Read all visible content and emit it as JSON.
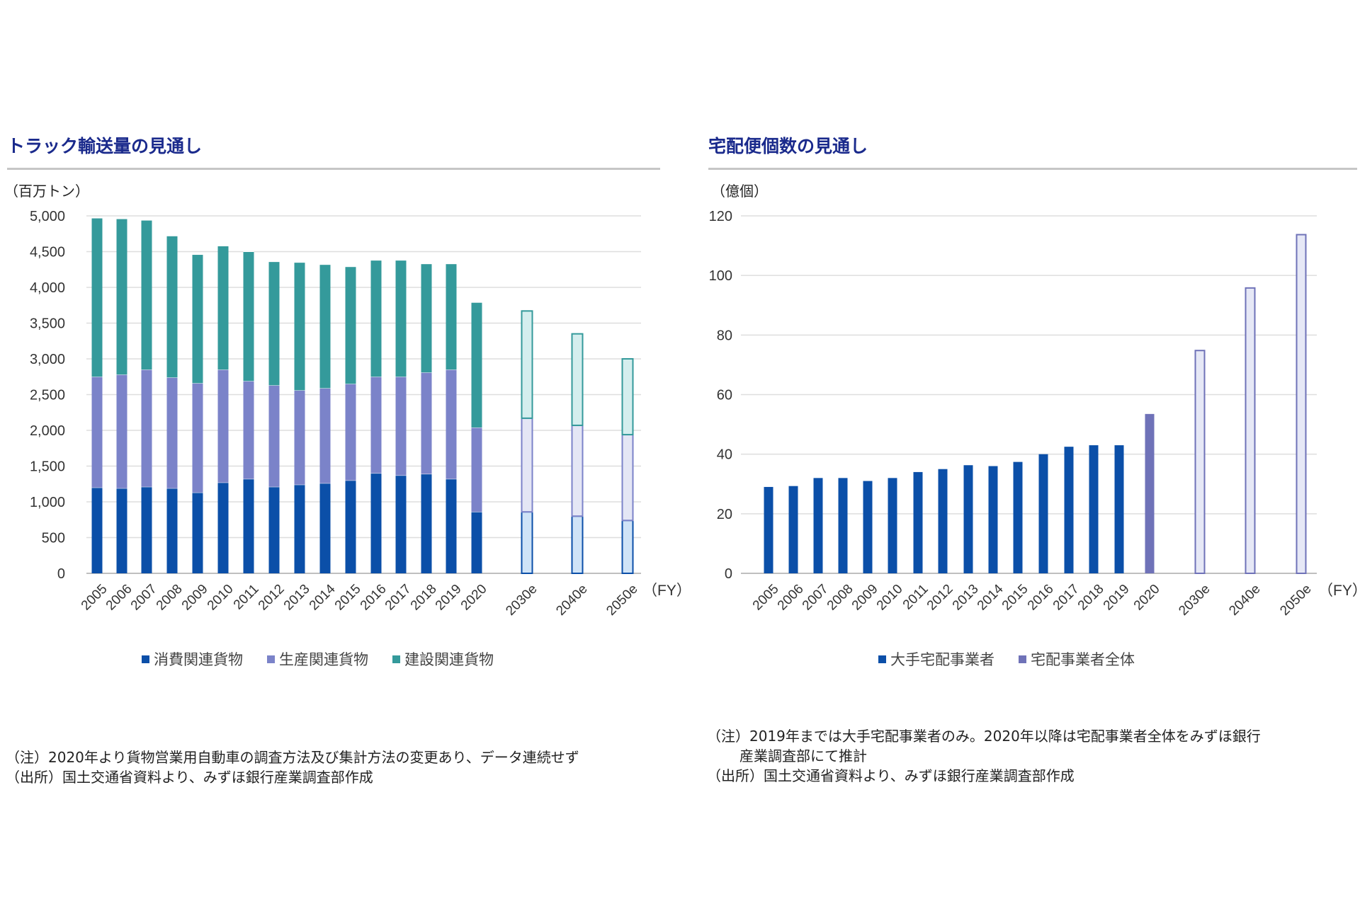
{
  "chart_data": [
    {
      "type": "bar",
      "stacked": true,
      "title": "トラック輸送量の見通し",
      "unit_label": "（百万トン）",
      "xlabel": "（FY）",
      "ylim": [
        0,
        5000
      ],
      "yticks": [
        0,
        500,
        1000,
        1500,
        2000,
        2500,
        3000,
        3500,
        4000,
        4500,
        5000
      ],
      "ytick_labels": [
        "0",
        "500",
        "1,000",
        "1,500",
        "2,000",
        "2,500",
        "3,000",
        "3,500",
        "4,000",
        "4,500",
        "5,000"
      ],
      "categories": [
        "2005",
        "2006",
        "2007",
        "2008",
        "2009",
        "2010",
        "2011",
        "2012",
        "2013",
        "2014",
        "2015",
        "2016",
        "2017",
        "2018",
        "2019",
        "2020",
        "2030e",
        "2040e",
        "2050e"
      ],
      "series": [
        {
          "name": "消費関連貨物",
          "color": "#0b4fa8",
          "values": [
            1200,
            1190,
            1210,
            1190,
            1130,
            1270,
            1320,
            1210,
            1240,
            1260,
            1300,
            1400,
            1370,
            1390,
            1320,
            860,
            860,
            800,
            740
          ]
        },
        {
          "name": "生産関連貨物",
          "color": "#7b83c9",
          "values": [
            1550,
            1590,
            1640,
            1550,
            1530,
            1580,
            1370,
            1420,
            1320,
            1330,
            1350,
            1350,
            1380,
            1420,
            1530,
            1180,
            1310,
            1270,
            1200
          ]
        },
        {
          "name": "建設関連貨物",
          "color": "#349a9b",
          "values": [
            2220,
            2180,
            2090,
            1980,
            1800,
            1730,
            1810,
            1730,
            1790,
            1730,
            1640,
            1630,
            1630,
            1520,
            1480,
            1750,
            1500,
            1280,
            1060
          ]
        }
      ],
      "projected_from_index": 16,
      "projected_fill": [
        "#cfe3f7",
        "#e4e6f5",
        "#d4eeee"
      ],
      "legend": [
        "消費関連貨物",
        "生産関連貨物",
        "建設関連貨物"
      ],
      "notes": [
        "（注）2020年より貨物営業用自動車の調査方法及び集計方法の変更あり、データ連続せず",
        "（出所）国土交通省資料より、みずほ銀行産業調査部作成"
      ]
    },
    {
      "type": "bar",
      "title": "宅配便個数の見通し",
      "unit_label": "（億個）",
      "xlabel": "（FY）",
      "ylim": [
        0,
        120
      ],
      "yticks": [
        0,
        20,
        40,
        60,
        80,
        100,
        120
      ],
      "ytick_labels": [
        "0",
        "20",
        "40",
        "60",
        "80",
        "100",
        "120"
      ],
      "categories": [
        "2005",
        "2006",
        "2007",
        "2008",
        "2009",
        "2010",
        "2011",
        "2012",
        "2013",
        "2014",
        "2015",
        "2016",
        "2017",
        "2018",
        "2019",
        "2020",
        "2030e",
        "2040e",
        "2050e"
      ],
      "series": [
        {
          "name": "大手宅配事業者",
          "color": "#0b4fa8",
          "values": [
            29,
            29.3,
            32,
            32,
            31,
            32,
            34,
            35,
            36.3,
            36,
            37.4,
            40,
            42.5,
            43,
            43,
            null,
            null,
            null,
            null
          ]
        },
        {
          "name": "宅配事業者全体",
          "color": "#6f72b8",
          "values": [
            null,
            null,
            null,
            null,
            null,
            null,
            null,
            null,
            null,
            null,
            null,
            null,
            null,
            null,
            null,
            53.5,
            74.8,
            95.8,
            113.7
          ]
        }
      ],
      "projected_from_index": 16,
      "projected_fill": "#e6e8f6",
      "legend": [
        "大手宅配事業者",
        "宅配事業者全体"
      ],
      "notes": [
        "（注）2019年までは大手宅配事業者のみ。2020年以降は宅配事業者全体をみずほ銀行",
        "産業調査部にて推計",
        "（出所）国土交通省資料より、みずほ銀行産業調査部作成"
      ]
    }
  ]
}
